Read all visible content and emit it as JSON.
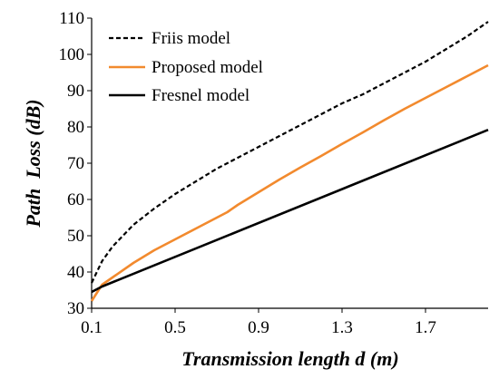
{
  "chart_data": {
    "type": "line",
    "title": "",
    "xlabel": "Transmission length d (m)",
    "ylabel": "Path  Loss (dB)",
    "xlim": [
      0.1,
      2.0
    ],
    "ylim": [
      30,
      110
    ],
    "xticks": [
      0.1,
      0.5,
      0.9,
      1.3,
      1.7
    ],
    "xtick_labels": [
      "0.1",
      "0.5",
      "0.9",
      "1.3",
      "1.7"
    ],
    "yticks": [
      30,
      40,
      50,
      60,
      70,
      80,
      90,
      100,
      110
    ],
    "ytick_labels": [
      "30",
      "40",
      "50",
      "60",
      "70",
      "80",
      "90",
      "100",
      "110"
    ],
    "grid": false,
    "legend_position": "top-left",
    "series": [
      {
        "name": "Friis model",
        "color": "#000000",
        "style": "dashed",
        "x": [
          0.1,
          0.15,
          0.2,
          0.25,
          0.3,
          0.4,
          0.5,
          0.6,
          0.7,
          0.8,
          0.9,
          1.0,
          1.1,
          1.2,
          1.3,
          1.4,
          1.5,
          1.6,
          1.7,
          1.8,
          1.9,
          2.0
        ],
        "y": [
          37.0,
          43.0,
          47.0,
          50.0,
          53.0,
          57.5,
          61.5,
          65.0,
          68.5,
          71.5,
          74.5,
          77.5,
          80.5,
          83.5,
          86.5,
          89.0,
          92.0,
          95.0,
          98.0,
          101.5,
          105.0,
          109.0
        ]
      },
      {
        "name": "Proposed model",
        "color": "#f28a2e",
        "style": "solid",
        "x": [
          0.1,
          0.15,
          0.2,
          0.3,
          0.4,
          0.5,
          0.6,
          0.7,
          0.75,
          0.8,
          0.9,
          1.0,
          1.1,
          1.2,
          1.3,
          1.4,
          1.5,
          1.6,
          1.7,
          1.8,
          1.9,
          2.0
        ],
        "y": [
          32.0,
          36.5,
          38.5,
          42.5,
          46.0,
          49.0,
          52.0,
          55.0,
          56.5,
          58.5,
          62.0,
          65.5,
          68.8,
          72.0,
          75.3,
          78.5,
          81.8,
          85.0,
          88.0,
          91.0,
          94.0,
          97.0
        ]
      },
      {
        "name": "Fresnel model",
        "color": "#000000",
        "style": "solid",
        "x": [
          0.1,
          0.15,
          2.0
        ],
        "y": [
          34.5,
          36.0,
          79.2
        ]
      }
    ]
  }
}
